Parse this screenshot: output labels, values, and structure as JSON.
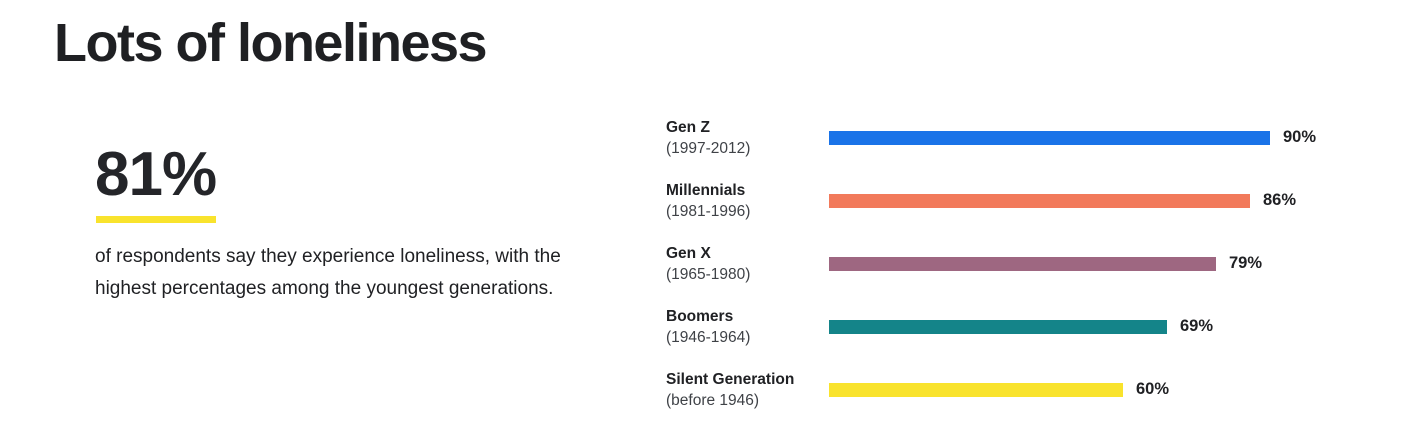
{
  "header": {
    "title": "Lots of loneliness"
  },
  "stat": {
    "value": "81%",
    "underline_color": "#f9e32d",
    "description": "of respondents say they experience loneliness, with the highest percentages among the youngest generations."
  },
  "chart_data": {
    "type": "bar",
    "orientation": "horizontal",
    "categories": [
      "Gen Z",
      "Millennials",
      "Gen X",
      "Boomers",
      "Silent Generation"
    ],
    "category_sublabels": [
      "(1997-2012)",
      "(1981-1996)",
      "(1965-1980)",
      "(1946-1964)",
      "(before 1946)"
    ],
    "values": [
      90,
      86,
      79,
      69,
      60
    ],
    "value_labels": [
      "90%",
      "86%",
      "79%",
      "69%",
      "60%"
    ],
    "bar_colors": [
      "#1a73e8",
      "#f27a5b",
      "#9e6781",
      "#148489",
      "#f9e32d"
    ],
    "unit": "%",
    "xlim": [
      0,
      100
    ],
    "grid": false,
    "legend": false,
    "value_label_position": "right-of-bar"
  }
}
